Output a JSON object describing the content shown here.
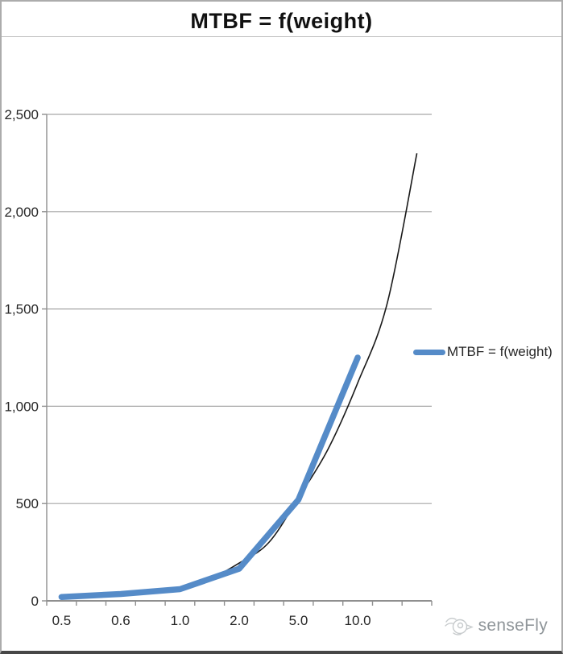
{
  "title": "MTBF = f(weight)",
  "legend": {
    "label": "MTBF = f(weight)"
  },
  "logo": {
    "text": "senseFly"
  },
  "colors": {
    "series_blue": "#558bc8",
    "trendline_black": "#1a1a1a",
    "grid_gray": "#a6a6a6",
    "axis_gray": "#8f8f8f",
    "tick_text": "#262626",
    "logo_gray": "#c6cacc"
  },
  "chart_data": {
    "type": "line",
    "title": "MTBF = f(weight)",
    "xlabel": "",
    "ylabel": "",
    "grid": true,
    "legend_position": "right",
    "categories": [
      "0.5",
      "0.6",
      "1.0",
      "2.0",
      "5.0",
      "10.0"
    ],
    "category_slot_positions": [
      1,
      3,
      5,
      7,
      9,
      11
    ],
    "n_slots": 13,
    "series": [
      {
        "name": "MTBF = f(weight)",
        "values": [
          20,
          35,
          60,
          165,
          520,
          1250
        ]
      }
    ],
    "trendline": {
      "name": "exponential fit (extended 2 periods)",
      "samples_slot_value": [
        [
          1,
          15
        ],
        [
          2,
          26
        ],
        [
          3,
          36
        ],
        [
          4,
          49
        ],
        [
          5,
          70
        ],
        [
          6,
          112
        ],
        [
          7,
          194
        ],
        [
          8,
          300
        ],
        [
          9,
          530
        ],
        [
          10,
          780
        ],
        [
          11,
          1120
        ],
        [
          12,
          1530
        ],
        [
          13,
          2300
        ]
      ]
    },
    "ylim": [
      0,
      2500
    ],
    "yticks": [
      0,
      500,
      1000,
      1500,
      2000,
      2500
    ],
    "ytick_labels": [
      "0",
      "500",
      "1,000",
      "1,500",
      "2,000",
      "2,500"
    ]
  }
}
